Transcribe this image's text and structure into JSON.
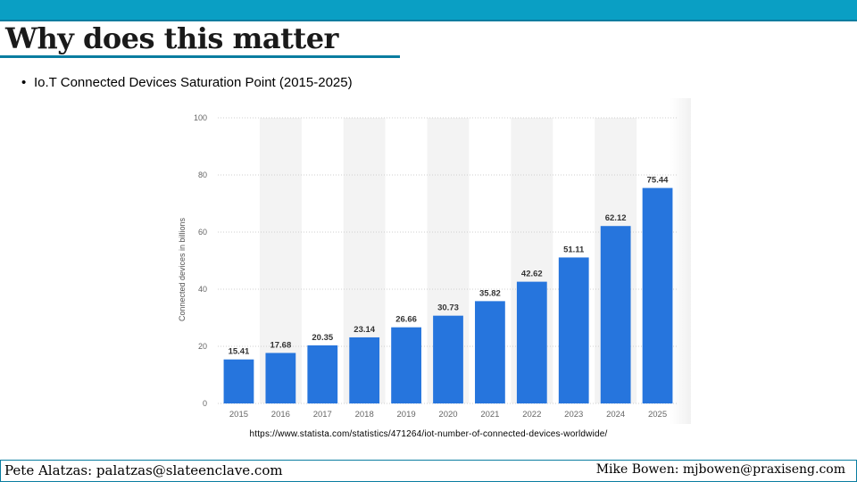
{
  "slide": {
    "title": "Why does this matter",
    "bullet_mark": "•",
    "bullet": "Io.T Connected Devices Saturation Point (2015-2025)",
    "source": "https://www.statista.com/statistics/471264/iot-number-of-connected-devices-worldwide/"
  },
  "footer": {
    "left": "Pete Alatzas: palatzas@slateenclave.com",
    "right": "Mike Bowen: mjbowen@praxiseng.com"
  },
  "colors": {
    "accent": "#0a9fc4",
    "bar": "#2675dd",
    "band": "#f3f3f3",
    "grid": "#cfcfcf"
  },
  "chart_data": {
    "type": "bar",
    "title": "",
    "xlabel": "",
    "ylabel": "Connected devices in billions",
    "categories": [
      "2015",
      "2016",
      "2017",
      "2018",
      "2019",
      "2020",
      "2021",
      "2022",
      "2023",
      "2024",
      "2025"
    ],
    "values": [
      15.41,
      17.68,
      20.35,
      23.14,
      26.66,
      30.73,
      35.82,
      42.62,
      51.11,
      62.12,
      75.44
    ],
    "value_labels": [
      "15.41",
      "17.68",
      "20.35",
      "23.14",
      "26.66",
      "30.73",
      "35.82",
      "42.62",
      "51.11",
      "62.12",
      "75.44"
    ],
    "ylim": [
      0,
      100
    ],
    "yticks": [
      0,
      20,
      40,
      60,
      80,
      100
    ],
    "grid": true,
    "legend": "none"
  }
}
